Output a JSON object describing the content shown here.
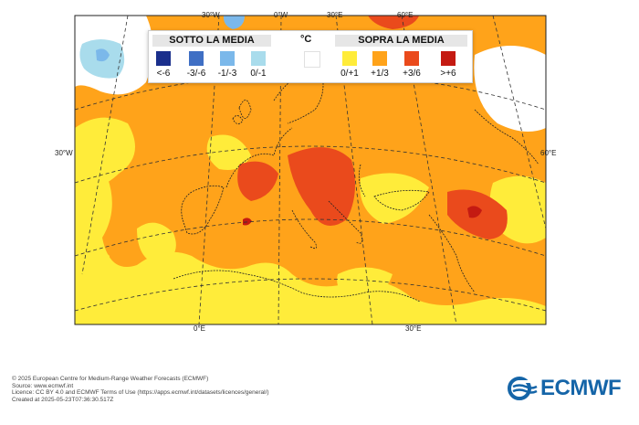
{
  "legend": {
    "below_title": "SOTTO LA MEDIA",
    "above_title": "SOPRA LA MEDIA",
    "unit": "°C",
    "classes": [
      {
        "label": "<-6",
        "color": "#1a2f8c"
      },
      {
        "label": "-3/-6",
        "color": "#3f6fc4"
      },
      {
        "label": "-1/-3",
        "color": "#7bb8ea"
      },
      {
        "label": "0/-1",
        "color": "#a9dcec"
      },
      {
        "label": "",
        "color": "#ffffff"
      },
      {
        "label": "0/+1",
        "color": "#ffec3a"
      },
      {
        "label": "+1/3",
        "color": "#ffa31a"
      },
      {
        "label": "+3/6",
        "color": "#ea4a1c"
      },
      {
        "label": ">+6",
        "color": "#c41a12"
      }
    ]
  },
  "axis_labels": {
    "top": [
      "30°W",
      "0°W",
      "30°E",
      "60°E"
    ],
    "left": "30°W",
    "right": "60°E",
    "bottom": [
      "0°E",
      "30°E"
    ]
  },
  "footer_lines": [
    "© 2025 European Centre for Medium-Range Weather Forecasts (ECMWF)",
    "Source: www.ecmwf.int",
    "Licence: CC BY 4.0 and ECMWF Terms of Use (https://apps.ecmwf.int/datasets/licences/general/)",
    "Created at 2025-05-23T07:36:30.517Z"
  ],
  "logo_text": "ECMWF"
}
